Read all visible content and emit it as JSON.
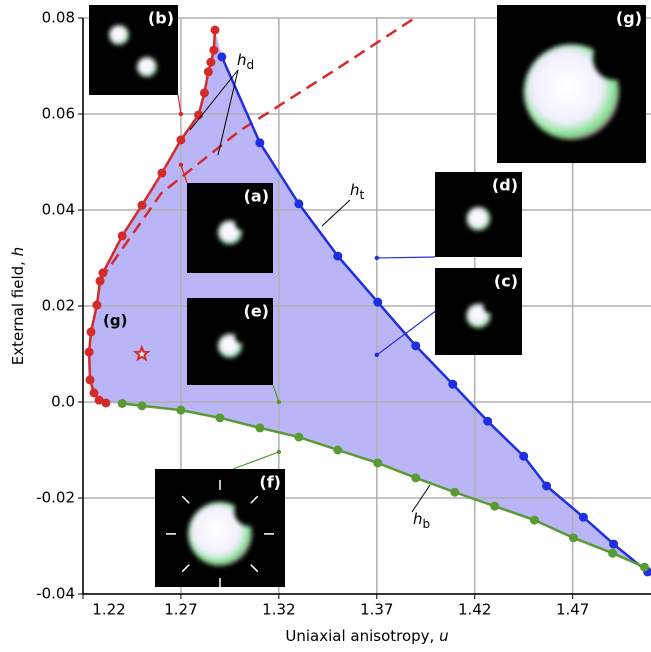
{
  "chart_data": {
    "type": "line",
    "xlabel": {
      "text": "Uniaxial anisotropy, ",
      "var": "u"
    },
    "ylabel": {
      "text": "External field, ",
      "var": "h"
    },
    "xlim": [
      1.22,
      1.51
    ],
    "ylim": [
      -0.04,
      0.08
    ],
    "xticks": [
      1.22,
      1.27,
      1.32,
      1.37,
      1.42,
      1.47
    ],
    "yticks": [
      -0.04,
      -0.02,
      {
        "value": 0,
        "label": "0.0"
      },
      0.02,
      0.04,
      0.06,
      0.08
    ],
    "grid": true,
    "fill_color": "#bab5f6",
    "series": [
      {
        "color": "#d42a2a",
        "dashed": false,
        "markers": true,
        "x": [
          1.2874,
          1.2868,
          1.2853,
          1.284,
          1.282,
          1.279,
          1.27,
          1.2603,
          1.2501,
          1.24,
          1.2302,
          1.2287,
          1.2271,
          1.2241,
          1.2231,
          1.2236,
          1.2256,
          1.2282,
          1.2317
        ],
        "values": [
          0.0775,
          0.0733,
          0.0708,
          0.0688,
          0.0644,
          0.0598,
          0.0546,
          0.0477,
          0.041,
          0.0346,
          0.0269,
          0.0252,
          0.0202,
          0.0146,
          0.0104,
          0.0046,
          0.0019,
          0.0004,
          -0.0002
        ]
      },
      {
        "color": "#d42a2a",
        "dashed": true,
        "markers": false,
        "x": [
          1.229,
          1.26,
          1.3,
          1.35,
          1.3894
        ],
        "values": [
          0.0255,
          0.0435,
          0.0565,
          0.0695,
          0.08
        ]
      },
      {
        "color": "#1f2ee0",
        "dashed": false,
        "markers": true,
        "x": [
          1.2909,
          1.3103,
          1.3302,
          1.3501,
          1.3705,
          1.3899,
          1.4088,
          1.4266,
          1.445,
          1.4567,
          1.4755,
          1.4909,
          1.5083
        ],
        "values": [
          0.0719,
          0.054,
          0.0413,
          0.0304,
          0.0208,
          0.0117,
          0.0037,
          -0.004,
          -0.0113,
          -0.0175,
          -0.024,
          -0.0296,
          -0.0354
        ]
      },
      {
        "color": "#5a9a32",
        "dashed": false,
        "markers": true,
        "x": [
          1.24,
          1.2501,
          1.27,
          1.2899,
          1.3103,
          1.3302,
          1.3501,
          1.3705,
          1.3899,
          1.4098,
          1.4302,
          1.4505,
          1.4704,
          1.4904,
          1.5067
        ],
        "values": [
          -0.0003,
          -0.0008,
          -0.0017,
          -0.0033,
          -0.0054,
          -0.0073,
          -0.01,
          -0.0127,
          -0.0158,
          -0.0188,
          -0.0217,
          -0.0246,
          -0.0283,
          -0.0315,
          -0.0344
        ]
      }
    ],
    "curve_labels": [
      {
        "symbol": "h",
        "subscript": "d"
      },
      {
        "symbol": "h",
        "subscript": "t"
      },
      {
        "symbol": "h",
        "subscript": "b"
      }
    ],
    "star": {
      "x": 1.25,
      "y": 0.01,
      "label": "(g)",
      "color": "#d42a2a"
    },
    "insets": [
      {
        "label": "(b)",
        "x": 1.27,
        "y": 0.06,
        "color": "#d42a2a"
      },
      {
        "label": "(a)",
        "x": 1.27,
        "y": 0.0494,
        "color": "#d42a2a"
      },
      {
        "label": "(d)",
        "x": 1.37,
        "y": 0.03,
        "color": "#1f2ee0"
      },
      {
        "label": "(c)",
        "x": 1.37,
        "y": 0.0098,
        "color": "#1f2ee0"
      },
      {
        "label": "(e)",
        "x": 1.32,
        "y": 0.0,
        "color": "#5a9a32"
      },
      {
        "label": "(f)",
        "x": 1.32,
        "y": -0.0104,
        "color": "#5a9a32"
      },
      {
        "label": "(g)"
      }
    ]
  }
}
